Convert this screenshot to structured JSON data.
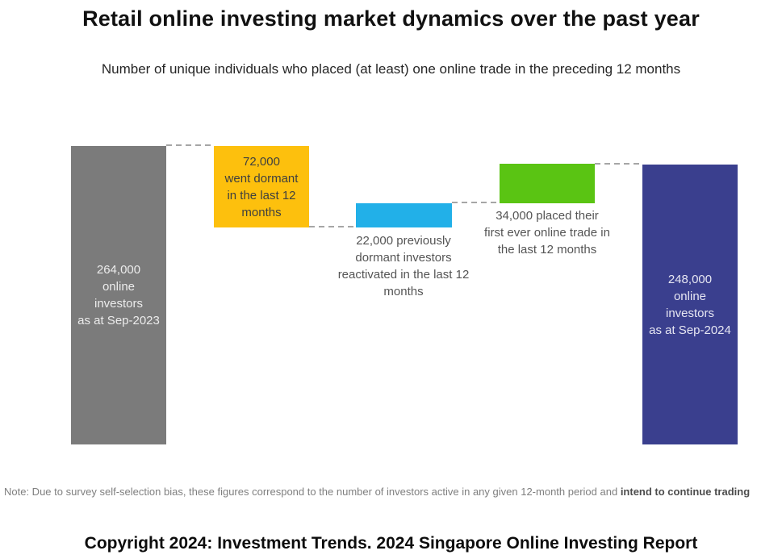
{
  "title": "Retail online investing market dynamics over the past year",
  "subtitle": "Number of unique individuals who placed (at least) one online trade in the preceding 12 months",
  "note": {
    "regular": "Note: Due to survey self-selection bias, these figures correspond to the number of investors active in any given 12-month period and ",
    "bold": "intend to continue trading"
  },
  "footer": "Copyright 2024: Investment Trends. 2024 Singapore Online Investing Report",
  "colors": {
    "connector": "#a6a6a6",
    "background": "#ffffff"
  },
  "chart_data": {
    "type": "bar",
    "subtype": "waterfall",
    "title": "Retail online investing market dynamics over the past year",
    "subtitle": "Number of unique individuals who placed (at least) one online trade in the preceding 12 months",
    "unit": "unique online investors",
    "ylim": [
      0,
      280000
    ],
    "grid": false,
    "legend": false,
    "categories": [
      "Online investors as at Sep-2023",
      "Went dormant in the last 12 months",
      "Previously dormant investors reactivated in the last 12 months",
      "Placed their first ever online trade in the last 12 months",
      "Online investors as at Sep-2024"
    ],
    "values": [
      264000,
      -72000,
      22000,
      34000,
      248000
    ],
    "bars": [
      {
        "name": "online-investors-sep-2023",
        "role": "total",
        "value": 264000,
        "color": "#7b7b7b",
        "label": "264,000\nonline\ninvestors\nas at Sep-2023",
        "label_position": "inside"
      },
      {
        "name": "went-dormant",
        "role": "decrease",
        "value": -72000,
        "color": "#fdc00d",
        "label": "72,000\nwent dormant\nin the last 12\nmonths",
        "label_position": "inside"
      },
      {
        "name": "dormant-reactivated",
        "role": "increase",
        "value": 22000,
        "color": "#22b0e8",
        "label": "22,000 previously\ndormant investors\nreactivated in the last 12\nmonths",
        "label_position": "below"
      },
      {
        "name": "first-ever-trade",
        "role": "increase",
        "value": 34000,
        "color": "#5ac413",
        "label": "34,000 placed their\nfirst ever online trade in\nthe last 12 months",
        "label_position": "below"
      },
      {
        "name": "online-investors-sep-2024",
        "role": "total",
        "value": 248000,
        "color": "#3a3f8e",
        "label": "248,000\nonline\ninvestors\nas at Sep-2024",
        "label_position": "inside"
      }
    ]
  }
}
